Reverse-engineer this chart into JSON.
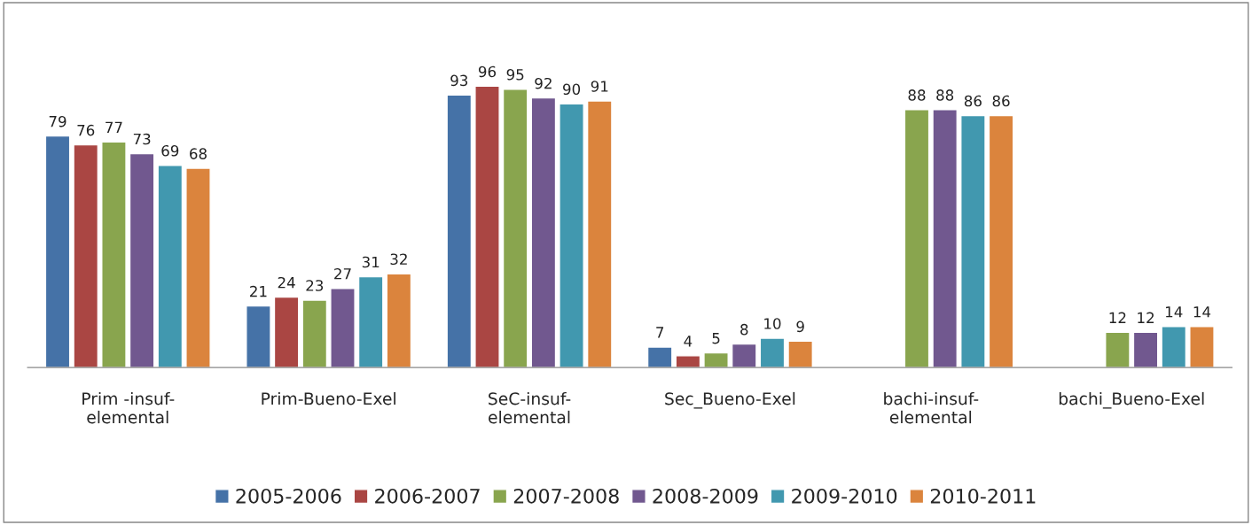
{
  "chart_data": {
    "type": "bar",
    "categories": [
      "Prim -insuf-\nelemental",
      "Prim-Bueno-Exel",
      "SeC-insuf-\nelemental",
      "Sec_Bueno-Exel",
      "bachi-insuf-\nelemental",
      "bachi_Bueno-Exel"
    ],
    "series": [
      {
        "name": "2005-2006",
        "color": "#4572a7",
        "values": [
          79,
          21,
          93,
          7,
          null,
          null
        ]
      },
      {
        "name": "2006-2007",
        "color": "#aa4643",
        "values": [
          76,
          24,
          96,
          4,
          null,
          null
        ]
      },
      {
        "name": "2007-2008",
        "color": "#89a54e",
        "values": [
          77,
          23,
          95,
          5,
          88,
          12
        ]
      },
      {
        "name": "2008-2009",
        "color": "#71588f",
        "values": [
          73,
          27,
          92,
          8,
          88,
          12
        ]
      },
      {
        "name": "2009-2010",
        "color": "#4198af",
        "values": [
          69,
          31,
          90,
          10,
          86,
          14
        ]
      },
      {
        "name": "2010-2011",
        "color": "#db843d",
        "values": [
          68,
          32,
          91,
          9,
          86,
          14
        ]
      }
    ],
    "data_labels": true,
    "legend": "bottom"
  }
}
